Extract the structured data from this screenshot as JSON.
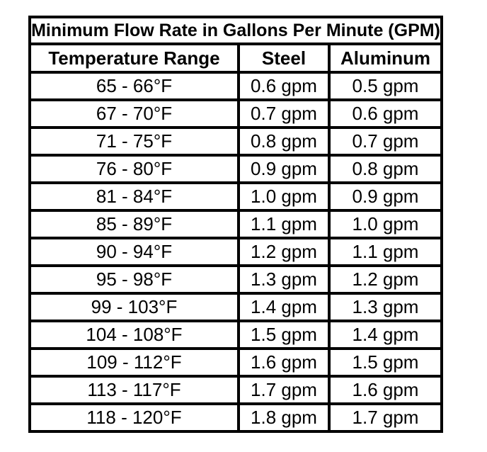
{
  "page": {
    "background_color": "#ffffff",
    "border_color": "#000000",
    "text_color": "#000000"
  },
  "table": {
    "title": "Minimum Flow Rate in Gallons Per Minute (GPM)",
    "columns": [
      "Temperature Range",
      "Steel",
      "Aluminum"
    ],
    "rows": [
      {
        "temperature_range": "65 - 66°F",
        "steel": "0.6 gpm",
        "aluminum": "0.5 gpm"
      },
      {
        "temperature_range": "67 - 70°F",
        "steel": "0.7 gpm",
        "aluminum": "0.6 gpm"
      },
      {
        "temperature_range": "71 - 75°F",
        "steel": "0.8 gpm",
        "aluminum": "0.7 gpm"
      },
      {
        "temperature_range": "76 - 80°F",
        "steel": "0.9 gpm",
        "aluminum": "0.8 gpm"
      },
      {
        "temperature_range": "81 - 84°F",
        "steel": "1.0 gpm",
        "aluminum": "0.9 gpm"
      },
      {
        "temperature_range": "85 - 89°F",
        "steel": "1.1 gpm",
        "aluminum": "1.0 gpm"
      },
      {
        "temperature_range": "90 - 94°F",
        "steel": "1.2 gpm",
        "aluminum": "1.1 gpm"
      },
      {
        "temperature_range": "95 - 98°F",
        "steel": "1.3 gpm",
        "aluminum": "1.2 gpm"
      },
      {
        "temperature_range": "99 - 103°F",
        "steel": "1.4 gpm",
        "aluminum": "1.3 gpm"
      },
      {
        "temperature_range": "104 - 108°F",
        "steel": "1.5 gpm",
        "aluminum": "1.4 gpm"
      },
      {
        "temperature_range": "109 - 112°F",
        "steel": "1.6 gpm",
        "aluminum": "1.5 gpm"
      },
      {
        "temperature_range": "113 - 117°F",
        "steel": "1.7 gpm",
        "aluminum": "1.6 gpm"
      },
      {
        "temperature_range": "118 - 120°F",
        "steel": "1.8 gpm",
        "aluminum": "1.7 gpm"
      }
    ]
  }
}
